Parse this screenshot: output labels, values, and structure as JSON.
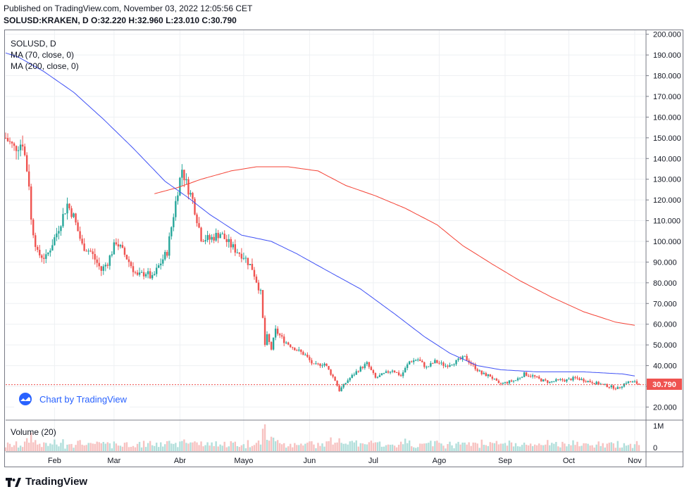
{
  "header": {
    "published": "Published on TradingView.com, November 03, 2022 12:05:56 CET",
    "ohlc": "SOLUSD:KRAKEN, D  O:32.220  H:32.960  L:23.010  C:30.790"
  },
  "legend": {
    "symbol": "SOLUSD, D",
    "ma70": "MA (70, close, 0)",
    "ma200": "MA (200, close, 0)",
    "volume": "Volume (20)"
  },
  "price_badge": "30.790",
  "watermark": {
    "text": "Chart by TradingView",
    "icon": "tradingview-cloud-icon"
  },
  "footer": {
    "brand": "TradingView",
    "icon": "tradingview-logo-icon"
  },
  "colors": {
    "up": "#26a69a",
    "down": "#ef5350",
    "ma70": "#3f51f5",
    "ma200": "#f44336",
    "price_line": "#ef5350"
  },
  "chart_data": {
    "type": "candlestick",
    "y_axis": {
      "min": 20,
      "max": 200,
      "step": 10,
      "tick_labels": [
        "200.000",
        "190.000",
        "180.000",
        "170.000",
        "160.000",
        "150.000",
        "140.000",
        "130.000",
        "120.000",
        "110.000",
        "100.000",
        "90.000",
        "80.000",
        "70.000",
        "60.000",
        "50.000",
        "40.000",
        "30.000",
        "20.000"
      ]
    },
    "volume_axis": {
      "tick_labels": [
        "1M",
        "0"
      ]
    },
    "x_axis": {
      "labels": [
        "Feb",
        "Mar",
        "Abr",
        "Mayo",
        "Jun",
        "Jul",
        "Ago",
        "Sep",
        "Oct",
        "Nov"
      ],
      "label_dates": [
        "2022-02-01",
        "2022-03-01",
        "2022-04-01",
        "2022-05-01",
        "2022-06-01",
        "2022-07-01",
        "2022-08-01",
        "2022-09-01",
        "2022-10-01",
        "2022-11-01"
      ]
    },
    "range": {
      "start": "2022-01-09",
      "end": "2022-11-03"
    },
    "last_close": 30.79,
    "closes_anchor": [
      [
        "2022-01-09",
        150
      ],
      [
        "2022-01-13",
        145
      ],
      [
        "2022-01-17",
        148
      ],
      [
        "2022-01-20",
        128
      ],
      [
        "2022-01-21",
        110
      ],
      [
        "2022-01-24",
        94
      ],
      [
        "2022-01-28",
        92
      ],
      [
        "2022-02-02",
        104
      ],
      [
        "2022-02-07",
        118
      ],
      [
        "2022-02-10",
        112
      ],
      [
        "2022-02-14",
        98
      ],
      [
        "2022-02-18",
        95
      ],
      [
        "2022-02-23",
        86
      ],
      [
        "2022-02-26",
        90
      ],
      [
        "2022-03-02",
        100
      ],
      [
        "2022-03-07",
        92
      ],
      [
        "2022-03-12",
        83
      ],
      [
        "2022-03-16",
        85
      ],
      [
        "2022-03-19",
        82
      ],
      [
        "2022-03-22",
        88
      ],
      [
        "2022-03-26",
        95
      ],
      [
        "2022-03-28",
        107
      ],
      [
        "2022-03-31",
        125
      ],
      [
        "2022-04-02",
        135
      ],
      [
        "2022-04-04",
        128
      ],
      [
        "2022-04-07",
        120
      ],
      [
        "2022-04-11",
        102
      ],
      [
        "2022-04-15",
        101
      ],
      [
        "2022-04-20",
        104
      ],
      [
        "2022-04-23",
        100
      ],
      [
        "2022-04-27",
        96
      ],
      [
        "2022-05-01",
        93
      ],
      [
        "2022-05-05",
        87
      ],
      [
        "2022-05-09",
        75
      ],
      [
        "2022-05-11",
        50
      ],
      [
        "2022-05-12",
        54
      ],
      [
        "2022-05-14",
        48
      ],
      [
        "2022-05-16",
        57
      ],
      [
        "2022-05-20",
        52
      ],
      [
        "2022-05-24",
        49
      ],
      [
        "2022-05-30",
        45
      ],
      [
        "2022-06-03",
        40
      ],
      [
        "2022-06-08",
        41
      ],
      [
        "2022-06-13",
        33
      ],
      [
        "2022-06-15",
        28
      ],
      [
        "2022-06-19",
        33
      ],
      [
        "2022-06-24",
        38
      ],
      [
        "2022-06-28",
        41
      ],
      [
        "2022-07-02",
        34
      ],
      [
        "2022-07-06",
        36
      ],
      [
        "2022-07-10",
        38
      ],
      [
        "2022-07-14",
        35
      ],
      [
        "2022-07-18",
        42
      ],
      [
        "2022-07-22",
        43
      ],
      [
        "2022-07-26",
        39
      ],
      [
        "2022-07-30",
        42
      ],
      [
        "2022-08-04",
        40
      ],
      [
        "2022-08-09",
        42
      ],
      [
        "2022-08-13",
        44
      ],
      [
        "2022-08-17",
        40
      ],
      [
        "2022-08-21",
        36
      ],
      [
        "2022-08-25",
        35
      ],
      [
        "2022-08-29",
        31
      ],
      [
        "2022-09-02",
        32
      ],
      [
        "2022-09-06",
        33
      ],
      [
        "2022-09-10",
        36
      ],
      [
        "2022-09-14",
        35
      ],
      [
        "2022-09-18",
        33
      ],
      [
        "2022-09-22",
        32
      ],
      [
        "2022-09-26",
        33
      ],
      [
        "2022-09-30",
        33
      ],
      [
        "2022-10-04",
        34
      ],
      [
        "2022-10-08",
        33
      ],
      [
        "2022-10-12",
        32
      ],
      [
        "2022-10-16",
        31
      ],
      [
        "2022-10-20",
        30
      ],
      [
        "2022-10-24",
        29
      ],
      [
        "2022-10-28",
        32
      ],
      [
        "2022-11-01",
        32
      ],
      [
        "2022-11-03",
        30.79
      ]
    ],
    "ma70_anchor": [
      [
        "2022-01-09",
        191
      ],
      [
        "2022-01-15",
        189
      ],
      [
        "2022-01-27",
        182
      ],
      [
        "2022-02-10",
        172
      ],
      [
        "2022-02-24",
        159
      ],
      [
        "2022-03-10",
        145
      ],
      [
        "2022-03-25",
        129
      ],
      [
        "2022-04-05",
        121
      ],
      [
        "2022-04-15",
        113
      ],
      [
        "2022-04-30",
        103
      ],
      [
        "2022-05-14",
        100
      ],
      [
        "2022-05-26",
        94
      ],
      [
        "2022-06-09",
        86
      ],
      [
        "2022-06-25",
        77
      ],
      [
        "2022-07-11",
        65
      ],
      [
        "2022-07-25",
        54
      ],
      [
        "2022-08-06",
        46
      ],
      [
        "2022-08-19",
        40
      ],
      [
        "2022-08-30",
        38
      ],
      [
        "2022-09-16",
        37
      ],
      [
        "2022-10-08",
        37
      ],
      [
        "2022-10-26",
        36
      ],
      [
        "2022-11-01",
        35
      ]
    ],
    "ma200_anchor": [
      [
        "2022-03-20",
        123
      ],
      [
        "2022-03-31",
        126
      ],
      [
        "2022-04-11",
        130
      ],
      [
        "2022-04-25",
        134
      ],
      [
        "2022-05-07",
        136
      ],
      [
        "2022-05-22",
        136
      ],
      [
        "2022-06-05",
        134
      ],
      [
        "2022-06-18",
        127
      ],
      [
        "2022-07-02",
        122
      ],
      [
        "2022-07-16",
        116
      ],
      [
        "2022-07-31",
        108
      ],
      [
        "2022-08-12",
        98
      ],
      [
        "2022-08-26",
        89
      ],
      [
        "2022-09-08",
        81
      ],
      [
        "2022-09-23",
        73
      ],
      [
        "2022-10-08",
        66
      ],
      [
        "2022-10-23",
        61
      ],
      [
        "2022-11-01",
        59.5
      ]
    ]
  }
}
